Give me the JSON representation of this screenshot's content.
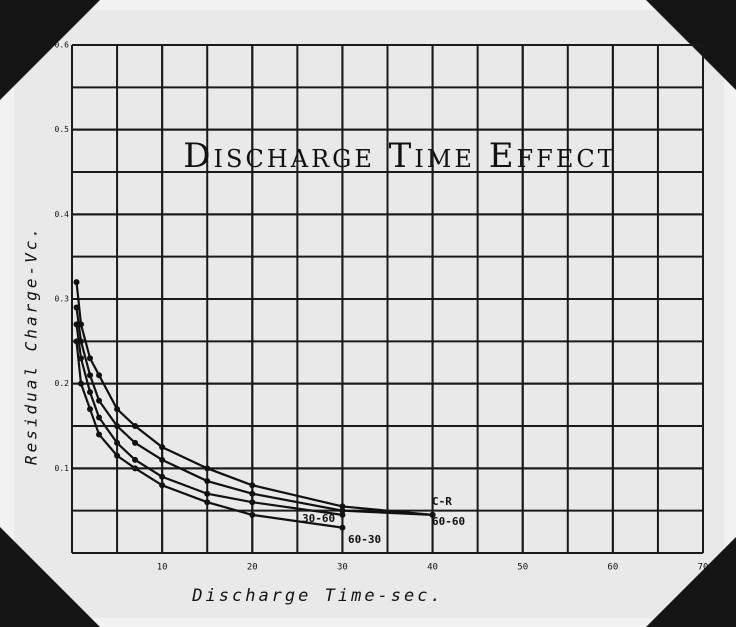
{
  "chart_data": {
    "type": "line",
    "title": "Discharge Time Effect",
    "xlabel": "Discharge Time-sec.",
    "ylabel": "Residual Charge-Vc.",
    "x": [
      0.5,
      1,
      2,
      3,
      5,
      7,
      10,
      15,
      20,
      30,
      40
    ],
    "series": [
      {
        "name": "C-R",
        "color": "#111111",
        "values": [
          0.32,
          0.27,
          0.23,
          0.21,
          0.17,
          0.15,
          0.125,
          0.1,
          0.08,
          0.055,
          0.045
        ]
      },
      {
        "name": "60-60",
        "color": "#111111",
        "values": [
          0.29,
          0.25,
          0.21,
          0.18,
          0.15,
          0.13,
          0.11,
          0.085,
          0.07,
          0.05,
          0.045
        ]
      },
      {
        "name": "30-60",
        "color": "#111111",
        "values": [
          0.27,
          0.23,
          0.19,
          0.16,
          0.13,
          0.11,
          0.09,
          0.07,
          0.06,
          0.045,
          null
        ]
      },
      {
        "name": "60-30",
        "color": "#111111",
        "values": [
          0.25,
          0.2,
          0.17,
          0.14,
          0.115,
          0.1,
          0.08,
          0.06,
          0.045,
          0.03,
          null
        ]
      }
    ],
    "xlim": [
      0,
      70
    ],
    "xticks": [
      10,
      20,
      30,
      40,
      50,
      60,
      70
    ],
    "ylim": [
      0,
      0.6
    ],
    "yticks": [
      0.1,
      0.2,
      0.3,
      0.4,
      0.5,
      0.6
    ],
    "grid": true
  }
}
